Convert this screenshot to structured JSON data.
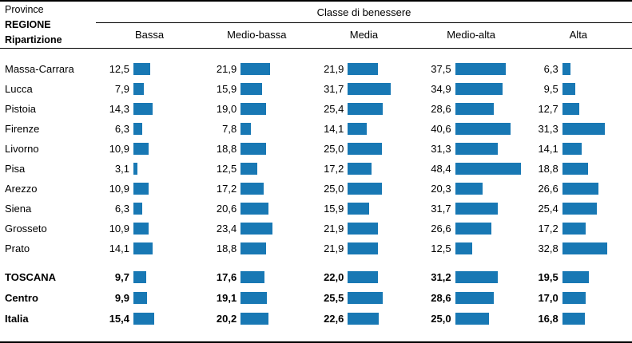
{
  "header": {
    "left_lines": [
      "Province",
      "REGIONE",
      "Ripartizione"
    ],
    "group_title": "Classe di benessere",
    "columns": [
      "Bassa",
      "Medio-bassa",
      "Media",
      "Medio-alta",
      "Alta"
    ]
  },
  "colors": {
    "bar": "#1878b4"
  },
  "rows": [
    {
      "label": "Massa-Carrara",
      "bold": false,
      "group_start": false,
      "display": [
        "12,5",
        "21,9",
        "21,9",
        "37,5",
        "6,3"
      ],
      "values": [
        12.5,
        21.9,
        21.9,
        37.5,
        6.3
      ]
    },
    {
      "label": "Lucca",
      "bold": false,
      "group_start": false,
      "display": [
        "7,9",
        "15,9",
        "31,7",
        "34,9",
        "9,5"
      ],
      "values": [
        7.9,
        15.9,
        31.7,
        34.9,
        9.5
      ]
    },
    {
      "label": "Pistoia",
      "bold": false,
      "group_start": false,
      "display": [
        "14,3",
        "19,0",
        "25,4",
        "28,6",
        "12,7"
      ],
      "values": [
        14.3,
        19.0,
        25.4,
        28.6,
        12.7
      ]
    },
    {
      "label": "Firenze",
      "bold": false,
      "group_start": false,
      "display": [
        "6,3",
        "7,8",
        "14,1",
        "40,6",
        "31,3"
      ],
      "values": [
        6.3,
        7.8,
        14.1,
        40.6,
        31.3
      ]
    },
    {
      "label": "Livorno",
      "bold": false,
      "group_start": false,
      "display": [
        "10,9",
        "18,8",
        "25,0",
        "31,3",
        "14,1"
      ],
      "values": [
        10.9,
        18.8,
        25.0,
        31.3,
        14.1
      ]
    },
    {
      "label": "Pisa",
      "bold": false,
      "group_start": false,
      "display": [
        "3,1",
        "12,5",
        "17,2",
        "48,4",
        "18,8"
      ],
      "values": [
        3.1,
        12.5,
        17.2,
        48.4,
        18.8
      ]
    },
    {
      "label": "Arezzo",
      "bold": false,
      "group_start": false,
      "display": [
        "10,9",
        "17,2",
        "25,0",
        "20,3",
        "26,6"
      ],
      "values": [
        10.9,
        17.2,
        25.0,
        20.3,
        26.6
      ]
    },
    {
      "label": "Siena",
      "bold": false,
      "group_start": false,
      "display": [
        "6,3",
        "20,6",
        "15,9",
        "31,7",
        "25,4"
      ],
      "values": [
        6.3,
        20.6,
        15.9,
        31.7,
        25.4
      ]
    },
    {
      "label": "Grosseto",
      "bold": false,
      "group_start": false,
      "display": [
        "10,9",
        "23,4",
        "21,9",
        "26,6",
        "17,2"
      ],
      "values": [
        10.9,
        23.4,
        21.9,
        26.6,
        17.2
      ]
    },
    {
      "label": "Prato",
      "bold": false,
      "group_start": false,
      "display": [
        "14,1",
        "18,8",
        "21,9",
        "12,5",
        "32,8"
      ],
      "values": [
        14.1,
        18.8,
        21.9,
        12.5,
        32.8
      ]
    },
    {
      "label": "TOSCANA",
      "bold": true,
      "group_start": true,
      "display": [
        "9,7",
        "17,6",
        "22,0",
        "31,2",
        "19,5"
      ],
      "values": [
        9.7,
        17.6,
        22.0,
        31.2,
        19.5
      ]
    },
    {
      "label": "Centro",
      "bold": true,
      "group_start": false,
      "display": [
        "9,9",
        "19,1",
        "25,5",
        "28,6",
        "17,0"
      ],
      "values": [
        9.9,
        19.1,
        25.5,
        28.6,
        17.0
      ]
    },
    {
      "label": "Italia",
      "bold": true,
      "group_start": false,
      "display": [
        "15,4",
        "20,2",
        "22,6",
        "25,0",
        "16,8"
      ],
      "values": [
        15.4,
        20.2,
        22.6,
        25.0,
        16.8
      ]
    }
  ],
  "chart_data": {
    "type": "bar",
    "orientation": "horizontal",
    "title": "Classe di benessere",
    "row_header_lines": [
      "Province",
      "REGIONE",
      "Ripartizione"
    ],
    "categories": [
      "Massa-Carrara",
      "Lucca",
      "Pistoia",
      "Firenze",
      "Livorno",
      "Pisa",
      "Arezzo",
      "Siena",
      "Grosseto",
      "Prato",
      "TOSCANA",
      "Centro",
      "Italia"
    ],
    "series": [
      {
        "name": "Bassa",
        "values": [
          12.5,
          7.9,
          14.3,
          6.3,
          10.9,
          3.1,
          10.9,
          6.3,
          10.9,
          14.1,
          9.7,
          9.9,
          15.4
        ]
      },
      {
        "name": "Medio-bassa",
        "values": [
          21.9,
          15.9,
          19.0,
          7.8,
          18.8,
          12.5,
          17.2,
          20.6,
          23.4,
          18.8,
          17.6,
          19.1,
          20.2
        ]
      },
      {
        "name": "Media",
        "values": [
          21.9,
          31.7,
          25.4,
          14.1,
          25.0,
          17.2,
          25.0,
          15.9,
          21.9,
          21.9,
          22.0,
          25.5,
          22.6
        ]
      },
      {
        "name": "Medio-alta",
        "values": [
          37.5,
          34.9,
          28.6,
          40.6,
          31.3,
          48.4,
          20.3,
          31.7,
          26.6,
          12.5,
          31.2,
          28.6,
          25.0
        ]
      },
      {
        "name": "Alta",
        "values": [
          6.3,
          9.5,
          12.7,
          31.3,
          14.1,
          18.8,
          26.6,
          25.4,
          17.2,
          32.8,
          19.5,
          17.0,
          16.8
        ]
      }
    ],
    "bold_categories": [
      "TOSCANA",
      "Centro",
      "Italia"
    ],
    "value_format": "italian-decimal-comma",
    "xlim": [
      0,
      50
    ],
    "grid": false,
    "legend_position": "column-headers",
    "bar_color": "#1878b4"
  }
}
